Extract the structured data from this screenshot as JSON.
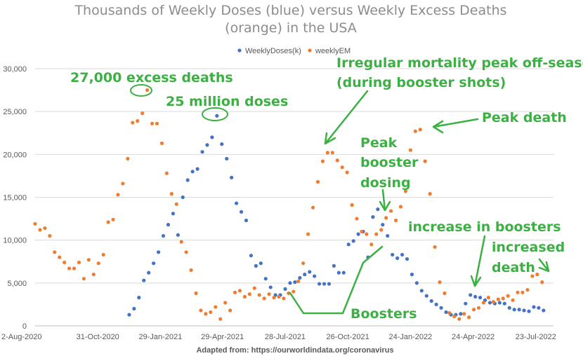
{
  "chart_data": {
    "type": "scatter",
    "title_lines": [
      "Thousands of Weekly Doses (blue) versus Weekly Excess Deaths",
      "(orange) in the USA"
    ],
    "ylim": [
      0,
      30000
    ],
    "y_ticks": [
      "0",
      "5,000",
      "10,000",
      "15,000",
      "20,000",
      "25,000",
      "30,000"
    ],
    "x_ticks": [
      "2-Aug-2020",
      "31-Oct-2020",
      "29-Jan-2021",
      "29-Apr-2021",
      "28-Jul-2021",
      "26-Oct-2021",
      "24-Jan-2022",
      "24-Apr-2022",
      "23-Jul-2022"
    ],
    "x_ticks_weeks": [
      0,
      12.86,
      25.71,
      38.43,
      51.29,
      64.14,
      77,
      89.86,
      102.71
    ],
    "series": [
      {
        "name": "WeeklyDoses(k)",
        "color": "#4472c4",
        "points": [
          [
            19.3,
            1300
          ],
          [
            20.3,
            2000
          ],
          [
            21.3,
            3300
          ],
          [
            22.3,
            5300
          ],
          [
            23.3,
            6200
          ],
          [
            24.3,
            7300
          ],
          [
            25.3,
            8600
          ],
          [
            26.3,
            10500
          ],
          [
            27.3,
            11800
          ],
          [
            28.3,
            13100
          ],
          [
            29.3,
            10600
          ],
          [
            30.3,
            15000
          ],
          [
            31.3,
            17000
          ],
          [
            32.3,
            18000
          ],
          [
            33.3,
            18300
          ],
          [
            34.3,
            20300
          ],
          [
            35.3,
            21100
          ],
          [
            36.3,
            22000
          ],
          [
            37.3,
            24500
          ],
          [
            38.3,
            21200
          ],
          [
            39.3,
            19500
          ],
          [
            40.3,
            17300
          ],
          [
            41.3,
            14300
          ],
          [
            42.3,
            13300
          ],
          [
            43.3,
            12300
          ],
          [
            44.3,
            8200
          ],
          [
            45.3,
            7000
          ],
          [
            46.3,
            7300
          ],
          [
            47.3,
            5500
          ],
          [
            48.3,
            4500
          ],
          [
            49.3,
            3600
          ],
          [
            50.3,
            3600
          ],
          [
            51.3,
            4300
          ],
          [
            52.3,
            5000
          ],
          [
            53.3,
            5100
          ],
          [
            54.3,
            5600
          ],
          [
            55.3,
            6000
          ],
          [
            56.3,
            6300
          ],
          [
            57.3,
            5800
          ],
          [
            58.3,
            4900
          ],
          [
            59.3,
            4900
          ],
          [
            60.3,
            4900
          ],
          [
            61.3,
            7000
          ],
          [
            62.3,
            6200
          ],
          [
            63.3,
            6200
          ],
          [
            64.3,
            9500
          ],
          [
            65.3,
            9900
          ],
          [
            66.3,
            10700
          ],
          [
            67.3,
            11000
          ],
          [
            68.3,
            8000
          ],
          [
            69.3,
            12700
          ],
          [
            70.3,
            13600
          ],
          [
            71.3,
            11800
          ],
          [
            72.3,
            10500
          ],
          [
            73.3,
            8300
          ],
          [
            74.3,
            7900
          ],
          [
            75.3,
            8300
          ],
          [
            76.3,
            7800
          ],
          [
            77.3,
            6000
          ],
          [
            78.3,
            5000
          ],
          [
            79.3,
            4100
          ],
          [
            80.3,
            3500
          ],
          [
            81.3,
            2900
          ],
          [
            82.3,
            2500
          ],
          [
            83.3,
            2100
          ],
          [
            84.3,
            1600
          ],
          [
            85.3,
            1300
          ],
          [
            86.3,
            1300
          ],
          [
            87.3,
            1400
          ],
          [
            88.3,
            2600
          ],
          [
            89.3,
            3600
          ],
          [
            90.3,
            3400
          ],
          [
            91.3,
            3300
          ],
          [
            92.3,
            3000
          ],
          [
            93.3,
            2700
          ],
          [
            94.3,
            2600
          ],
          [
            95.3,
            2700
          ],
          [
            96.3,
            2600
          ],
          [
            97.3,
            2100
          ],
          [
            98.3,
            1900
          ],
          [
            99.3,
            1900
          ],
          [
            100.3,
            1800
          ],
          [
            101.3,
            1700
          ],
          [
            102.3,
            2200
          ],
          [
            103.3,
            2100
          ],
          [
            104.3,
            1800
          ]
        ]
      },
      {
        "name": "weeklyEM",
        "color": "#ed7d31",
        "points": [
          [
            0,
            11900
          ],
          [
            1,
            11200
          ],
          [
            2,
            11400
          ],
          [
            3,
            10500
          ],
          [
            4,
            8600
          ],
          [
            5,
            8000
          ],
          [
            6,
            7400
          ],
          [
            7,
            6700
          ],
          [
            8,
            6700
          ],
          [
            9,
            7400
          ],
          [
            10,
            5500
          ],
          [
            11,
            7700
          ],
          [
            12,
            6000
          ],
          [
            13,
            7300
          ],
          [
            14,
            8300
          ],
          [
            15,
            12100
          ],
          [
            16,
            12400
          ],
          [
            17,
            15300
          ],
          [
            18,
            16600
          ],
          [
            19,
            19500
          ],
          [
            20,
            23700
          ],
          [
            21,
            23900
          ],
          [
            22,
            24800
          ],
          [
            23,
            27500
          ],
          [
            24,
            23600
          ],
          [
            25,
            23600
          ],
          [
            26,
            21300
          ],
          [
            27,
            17800
          ],
          [
            28,
            15400
          ],
          [
            29,
            14200
          ],
          [
            30,
            9800
          ],
          [
            31,
            8600
          ],
          [
            32,
            6500
          ],
          [
            33,
            3800
          ],
          [
            34,
            1800
          ],
          [
            35,
            1400
          ],
          [
            36,
            1600
          ],
          [
            37,
            2200
          ],
          [
            38,
            800
          ],
          [
            39,
            2700
          ],
          [
            40,
            1800
          ],
          [
            41,
            3900
          ],
          [
            42,
            4100
          ],
          [
            43,
            3400
          ],
          [
            44,
            3700
          ],
          [
            45,
            4400
          ],
          [
            46,
            3600
          ],
          [
            47,
            3200
          ],
          [
            48,
            3700
          ],
          [
            49,
            3300
          ],
          [
            50,
            3400
          ],
          [
            51,
            3200
          ],
          [
            52,
            3800
          ],
          [
            53,
            4000
          ],
          [
            54,
            5200
          ],
          [
            55,
            7300
          ],
          [
            56,
            10700
          ],
          [
            57,
            13800
          ],
          [
            58,
            16800
          ],
          [
            59,
            19200
          ],
          [
            60,
            20200
          ],
          [
            61,
            20200
          ],
          [
            62,
            19300
          ],
          [
            63,
            18500
          ],
          [
            64,
            17900
          ],
          [
            65,
            14100
          ],
          [
            66,
            12500
          ],
          [
            67,
            11000
          ],
          [
            68,
            10700
          ],
          [
            69,
            9500
          ],
          [
            70,
            10700
          ],
          [
            71,
            11200
          ],
          [
            72,
            12600
          ],
          [
            73,
            13400
          ],
          [
            74,
            12300
          ],
          [
            75,
            13900
          ],
          [
            76,
            15700
          ],
          [
            77,
            20500
          ],
          [
            78,
            22700
          ],
          [
            79,
            22900
          ],
          [
            80,
            19200
          ],
          [
            81,
            15400
          ],
          [
            82,
            9200
          ],
          [
            83,
            5100
          ],
          [
            84,
            3800
          ],
          [
            85,
            1500
          ],
          [
            86,
            1100
          ],
          [
            87,
            800
          ],
          [
            88,
            1400
          ],
          [
            89,
            1000
          ],
          [
            90,
            1900
          ],
          [
            91,
            2100
          ],
          [
            92,
            2700
          ],
          [
            93,
            3300
          ],
          [
            94,
            2800
          ],
          [
            95,
            3100
          ],
          [
            96,
            3200
          ],
          [
            97,
            3500
          ],
          [
            98,
            3000
          ],
          [
            99,
            3900
          ],
          [
            100,
            3900
          ],
          [
            101,
            4200
          ],
          [
            102,
            5800
          ],
          [
            103,
            6000
          ],
          [
            104,
            5100
          ]
        ]
      }
    ],
    "legend_position": "top",
    "grid": true,
    "annotations": [
      "27,000 excess deaths",
      "25 million doses",
      "Irregular mortality peak off-season",
      "(during booster shots)",
      "Peak death",
      "Peak",
      "booster",
      "dosing",
      "increase in boosters",
      "increased",
      "death",
      "Boosters"
    ],
    "footer": "Adapted from: https://ourworldindata.org/coronavirus"
  }
}
